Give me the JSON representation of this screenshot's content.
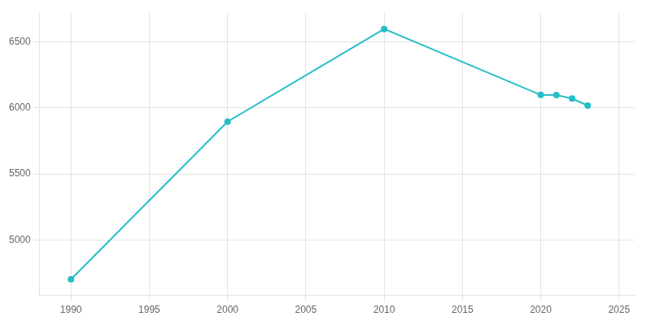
{
  "chart_data": {
    "type": "line",
    "x": [
      1990,
      2000,
      2010,
      2020,
      2021,
      2022,
      2023
    ],
    "values": [
      4702,
      5897,
      6599,
      6099,
      6098,
      6072,
      6018
    ],
    "color": "#25bec8",
    "marker": "circle",
    "xlim": [
      1988,
      2026
    ],
    "ylim": [
      4580,
      6720
    ],
    "xticks": [
      1990,
      1995,
      2000,
      2005,
      2010,
      2015,
      2020,
      2025
    ],
    "yticks": [
      5000,
      5500,
      6000,
      6500
    ],
    "grid": true
  }
}
